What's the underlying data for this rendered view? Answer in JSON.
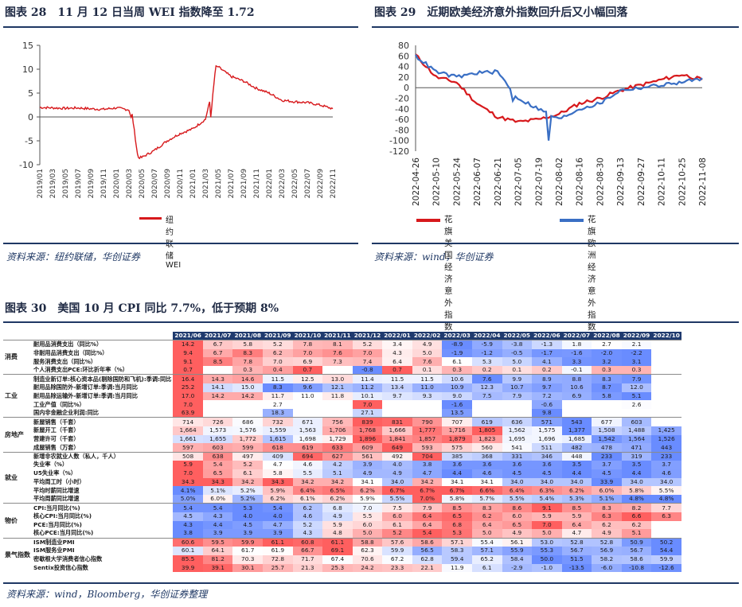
{
  "fig28": {
    "title": "图表 28　11 月 12 日当周 WEI 指数降至 1.72",
    "source": "资料来源：纽约联储，华创证券",
    "legend": "纽约联储WEI",
    "line_color": "#d7191c"
  },
  "fig29": {
    "title": "图表 29　近期欧美经济意外指数回升后又小幅回落",
    "source": "资料来源：wind，华创证券",
    "legend_us": "花旗美国经济意外指数",
    "legend_eu": "花旗欧洲经济意外指数",
    "us_color": "#d7191c",
    "eu_color": "#3a6fc4"
  },
  "fig30": {
    "title": "图表 30　美国 10 月 CPI 同比 7.7%，低于预期 8%",
    "source": "资料来源：wind，Bloomberg，华创证券整理"
  },
  "chart_data": [
    {
      "type": "line",
      "title": "纽约联储WEI",
      "x": [
        "2019/01",
        "2019/03",
        "2019/05",
        "2019/07",
        "2019/09",
        "2019/11",
        "2020/01",
        "2020/03",
        "2020/05",
        "2020/07",
        "2020/09",
        "2020/11",
        "2021/01",
        "2021/03",
        "2021/05",
        "2021/07",
        "2021/09",
        "2021/11",
        "2022/01",
        "2022/03",
        "2022/05",
        "2022/07",
        "2022/09",
        "2022/11"
      ],
      "series": [
        {
          "name": "纽约联储WEI",
          "values": [
            2.0,
            1.9,
            1.8,
            1.9,
            1.7,
            1.6,
            1.9,
            1.5,
            -8.5,
            -7.0,
            -5.0,
            -3.5,
            -2.5,
            -0.5,
            10.5,
            8.5,
            7.5,
            6.0,
            5.0,
            3.5,
            3.2,
            3.0,
            2.5,
            1.72
          ]
        }
      ],
      "ylim": [
        -10,
        15
      ],
      "yticks": [
        -10,
        -5,
        0,
        5,
        10,
        15
      ]
    },
    {
      "type": "line",
      "title": "花旗经济意外指数",
      "x": [
        "2022-04-26",
        "2022-05-10",
        "2022-05-24",
        "2022-06-07",
        "2022-06-21",
        "2022-07-05",
        "2022-07-19",
        "2022-08-02",
        "2022-08-16",
        "2022-08-30",
        "2022-09-13",
        "2022-09-27",
        "2022-10-11",
        "2022-10-25",
        "2022-11-08"
      ],
      "series": [
        {
          "name": "花旗美国经济意外指数",
          "values": [
            62,
            20,
            10,
            -30,
            -55,
            -65,
            -60,
            -50,
            -30,
            -20,
            -5,
            5,
            15,
            25,
            15
          ]
        },
        {
          "name": "花旗欧洲经济意外指数",
          "values": [
            60,
            30,
            20,
            28,
            30,
            -20,
            -40,
            -60,
            -40,
            -30,
            -5,
            0,
            5,
            10,
            18
          ]
        }
      ],
      "ylim": [
        -120,
        80
      ],
      "yticks": [
        80,
        60,
        40,
        20,
        0,
        -20,
        -40,
        -60,
        -80,
        -100,
        -120
      ]
    }
  ],
  "table": {
    "headers": [
      "2021/06",
      "2021/07",
      "2021/08",
      "2021/09",
      "2021/10",
      "2021/11",
      "2021/12",
      "2022/01",
      "2022/02",
      "2022/03",
      "2022/04",
      "2022/05",
      "2022/06",
      "2022/07",
      "2022/08",
      "2022/09",
      "2022/10"
    ],
    "groups": [
      {
        "category": "消费",
        "rows": [
          {
            "label": "耐用品消费支出（同比%）",
            "values": [
              "14.2",
              "6.7",
              "5.8",
              "5.2",
              "7.8",
              "8.1",
              "5.2",
              "3.4",
              "4.9",
              "-8.9",
              "-5.9",
              "-3.8",
              "-1.3",
              "1.8",
              "2.7",
              "2.1",
              ""
            ]
          },
          {
            "label": "非耐用品消费支出（同比%）",
            "values": [
              "9.4",
              "6.7",
              "8.3",
              "6.2",
              "7.0",
              "7.6",
              "7.0",
              "4.3",
              "5.0",
              "-1.9",
              "-1.2",
              "-0.5",
              "-1.7",
              "-1.6",
              "-2.0",
              "-2.2",
              ""
            ]
          },
          {
            "label": "服务消费支出（同比%）",
            "values": [
              "9.1",
              "8.5",
              "7.8",
              "7.0",
              "6.9",
              "7.3",
              "7.4",
              "6.4",
              "7.6",
              "6.1",
              "5.3",
              "5.0",
              "4.1",
              "3.3",
              "3.2",
              "3.1",
              ""
            ]
          },
          {
            "label": "个人消费支出PCE:环比折年率（%）",
            "values": [
              "0.7",
              "",
              "0.3",
              "0.4",
              "0.7",
              "",
              "-0.8",
              "0.7",
              "0.1",
              "0.3",
              "0.2",
              "0.1",
              "0.2",
              "-0.1",
              "0.3",
              "0.3",
              ""
            ]
          }
        ]
      },
      {
        "category": "工业",
        "rows": [
          {
            "label": "制造业新订单:核心资本品(剔除国防和飞机):季调:同比",
            "values": [
              "16.4",
              "14.3",
              "14.6",
              "11.5",
              "12.5",
              "13.0",
              "11.4",
              "11.5",
              "11.5",
              "10.6",
              "7.6",
              "9.9",
              "8.9",
              "8.8",
              "8.3",
              "7.9",
              ""
            ]
          },
          {
            "label": "耐用品除国防外-新增订单:季调:当月同比",
            "values": [
              "25.2",
              "14.1",
              "15.0",
              "8.3",
              "9.6",
              "12.1",
              "11.2",
              "13.4",
              "11.0",
              "10.9",
              "12.3",
              "10.7",
              "9.7",
              "10.6",
              "8.7",
              "12.0",
              ""
            ]
          },
          {
            "label": "耐用品除运输外-新增订单:季调:当月同比",
            "values": [
              "17.0",
              "14.2",
              "14.2",
              "11.7",
              "11.0",
              "11.8",
              "10.1",
              "9.7",
              "9.3",
              "9.0",
              "7.5",
              "7.9",
              "7.2",
              "6.9",
              "5.8",
              "5.1",
              ""
            ]
          },
          {
            "label": "工业产值（同比%）",
            "values": [
              "7.0",
              "",
              "",
              "2.7",
              "",
              "",
              "7.0",
              "",
              "",
              "-1.6",
              "",
              "",
              "-0.6",
              "",
              "",
              "2.6",
              ""
            ]
          },
          {
            "label": "国内非金融企业利润:同比",
            "values": [
              "63.9",
              "",
              "",
              "18.3",
              "",
              "",
              "27.1",
              "",
              "",
              "13.5",
              "",
              "",
              "9.8",
              "",
              "",
              "",
              ""
            ]
          }
        ]
      },
      {
        "category": "房地产",
        "rows": [
          {
            "label": "新屋销售（千套）",
            "values": [
              "714",
              "726",
              "686",
              "732",
              "671",
              "756",
              "839",
              "831",
              "790",
              "707",
              "619",
              "636",
              "571",
              "543",
              "677",
              "603",
              ""
            ]
          },
          {
            "label": "新屋开工（千套）",
            "values": [
              "1,664",
              "1,573",
              "1,576",
              "1,559",
              "1,563",
              "1,706",
              "1,768",
              "1,666",
              "1,777",
              "1,716",
              "1,805",
              "1,562",
              "1,575",
              "1,377",
              "1,508",
              "1,488",
              "1,425"
            ]
          },
          {
            "label": "营建许可（千套）",
            "values": [
              "1,661",
              "1,655",
              "1,772",
              "1,615",
              "1,698",
              "1,729",
              "1,896",
              "1,841",
              "1,857",
              "1,879",
              "1,823",
              "1,695",
              "1,696",
              "1,685",
              "1,542",
              "1,564",
              "1,526"
            ]
          },
          {
            "label": "成屋销售（万套）",
            "values": [
              "597",
              "603",
              "599",
              "618",
              "619",
              "633",
              "609",
              "649",
              "593",
              "575",
              "560",
              "541",
              "511",
              "482",
              "478",
              "471",
              "443"
            ]
          }
        ]
      },
      {
        "category": "就业",
        "rows": [
          {
            "label": "新增非农就业人数（私人，千人）",
            "values": [
              "508",
              "638",
              "497",
              "409",
              "694",
              "627",
              "561",
              "492",
              "704",
              "385",
              "368",
              "331",
              "346",
              "448",
              "233",
              "319",
              "233"
            ]
          },
          {
            "label": "失业率（%）",
            "values": [
              "5.9",
              "5.4",
              "5.2",
              "4.7",
              "4.6",
              "4.2",
              "3.9",
              "4.0",
              "3.8",
              "3.6",
              "3.6",
              "3.6",
              "3.6",
              "3.5",
              "3.7",
              "3.5",
              "3.7"
            ]
          },
          {
            "label": "U5失业率（%）",
            "values": [
              "7.0",
              "6.5",
              "6.1",
              "5.8",
              "5.5",
              "5.1",
              "4.9",
              "4.9",
              "4.7",
              "4.4",
              "4.6",
              "4.5",
              "4.5",
              "4.4",
              "4.5",
              "4.4",
              "4.6"
            ]
          },
          {
            "label": "平均周工时（小时）",
            "values": [
              "34.3",
              "34.3",
              "34.2",
              "34.3",
              "34.2",
              "34.2",
              "34.1",
              "34.0",
              "34.2",
              "34.1",
              "34.1",
              "34.0",
              "34.0",
              "34.0",
              "33.9",
              "34.0",
              "34.0"
            ]
          },
          {
            "label": "平均时薪同比增速",
            "values": [
              "4.1%",
              "5.1%",
              "5.2%",
              "5.9%",
              "6.4%",
              "6.5%",
              "6.2%",
              "6.7%",
              "6.7%",
              "6.7%",
              "6.6%",
              "6.4%",
              "6.3%",
              "6.2%",
              "6.0%",
              "5.8%",
              "5.5%"
            ]
          },
          {
            "label": "平均周薪同比增速",
            "values": [
              "5.0%",
              "6.0%",
              "5.2%",
              "6.2%",
              "6.1%",
              "6.2%",
              "5.9%",
              "5.5%",
              "7.0%",
              "5.8%",
              "5.7%",
              "5.5%",
              "5.4%",
              "5.3%",
              "5.1%",
              "4.8%",
              "4.8%"
            ]
          }
        ]
      },
      {
        "category": "物价",
        "rows": [
          {
            "label": "CPI:当月同比(%)",
            "values": [
              "5.4",
              "5.4",
              "5.3",
              "5.4",
              "6.2",
              "6.8",
              "7.0",
              "7.5",
              "7.9",
              "8.5",
              "8.3",
              "8.6",
              "9.1",
              "8.5",
              "8.3",
              "8.2",
              "7.7"
            ]
          },
          {
            "label": "核心CPI:当月同比(%)",
            "values": [
              "4.5",
              "4.3",
              "4.0",
              "4.0",
              "4.6",
              "4.9",
              "5.5",
              "6.0",
              "6.4",
              "6.5",
              "6.2",
              "6.0",
              "5.9",
              "5.9",
              "6.3",
              "6.6",
              "6.3"
            ]
          },
          {
            "label": "PCE:当月同比(%)",
            "values": [
              "4.3",
              "4.4",
              "4.5",
              "4.7",
              "5.2",
              "5.9",
              "6.0",
              "6.1",
              "6.4",
              "6.8",
              "6.4",
              "6.5",
              "7.0",
              "6.4",
              "6.2",
              "6.2",
              ""
            ]
          },
          {
            "label": "核心PCE:当月同比(%)",
            "values": [
              "3.8",
              "3.9",
              "3.9",
              "3.9",
              "4.3",
              "4.8",
              "5.0",
              "5.2",
              "5.4",
              "5.3",
              "5.0",
              "4.9",
              "5.0",
              "4.7",
              "4.9",
              "5.1",
              ""
            ]
          }
        ]
      },
      {
        "category": "景气指数",
        "rows": [
          {
            "label": "ISM制造业PMI",
            "values": [
              "60.6",
              "59.5",
              "59.9",
              "61.1",
              "60.8",
              "61.1",
              "58.8",
              "57.6",
              "58.6",
              "57.1",
              "55.4",
              "56.1",
              "53.0",
              "52.8",
              "52.8",
              "50.9",
              "50.2"
            ]
          },
          {
            "label": "ISM服务业PMI",
            "values": [
              "60.1",
              "64.1",
              "61.7",
              "61.9",
              "66.7",
              "69.1",
              "62.3",
              "59.9",
              "56.5",
              "58.3",
              "57.1",
              "55.9",
              "55.3",
              "56.7",
              "56.9",
              "56.7",
              "54.4"
            ]
          },
          {
            "label": "密歇根大学消费者信心指数",
            "values": [
              "85.5",
              "81.2",
              "70.3",
              "72.8",
              "71.7",
              "67.4",
              "70.6",
              "67.2",
              "62.8",
              "59.4",
              "65.2",
              "58.4",
              "50.0",
              "51.5",
              "58.2",
              "58.6",
              "59.9"
            ]
          },
          {
            "label": "Sentix投资信心指数",
            "values": [
              "39.9",
              "39.1",
              "30.1",
              "25.7",
              "21.3",
              "25.3",
              "24.2",
              "23.3",
              "22.1",
              "11.9",
              "6.1",
              "-2.9",
              "-1.0",
              "-13.5",
              "-6.0",
              "-10.8",
              "-12.6"
            ]
          }
        ]
      }
    ]
  }
}
